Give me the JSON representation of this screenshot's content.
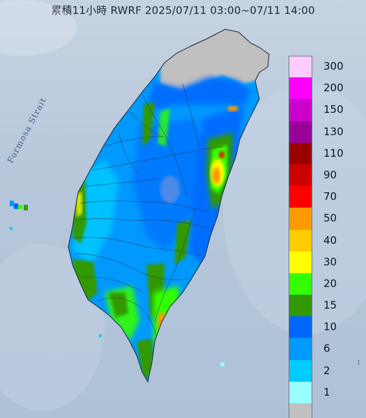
{
  "title": "累積11小時 RWRF 2025/07/11 03:00~07/11 14:00",
  "strait_label": "Formosa Strait",
  "corner_label": "1",
  "legend": [
    {
      "label": "300",
      "color": "#ffccff"
    },
    {
      "label": "200",
      "color": "#ff00ff"
    },
    {
      "label": "150",
      "color": "#cc00cc"
    },
    {
      "label": "130",
      "color": "#990099"
    },
    {
      "label": "110",
      "color": "#990000"
    },
    {
      "label": "90",
      "color": "#cc0000"
    },
    {
      "label": "70",
      "color": "#ff0000"
    },
    {
      "label": "50",
      "color": "#ff9900"
    },
    {
      "label": "40",
      "color": "#ffcc00"
    },
    {
      "label": "30",
      "color": "#ffff00"
    },
    {
      "label": "20",
      "color": "#33ff00"
    },
    {
      "label": "15",
      "color": "#339900"
    },
    {
      "label": "10",
      "color": "#0066ff"
    },
    {
      "label": "6",
      "color": "#0099ff"
    },
    {
      "label": "2",
      "color": "#00ccff"
    },
    {
      "label": "1",
      "color": "#99ffff"
    },
    {
      "label": "",
      "color": "#c0c0c0"
    }
  ],
  "colors": {
    "sea": "#b9c9dc",
    "no_rain": "#c0c0c0",
    "light": "#0099ff",
    "medium": "#0066ff",
    "green": "#339900",
    "bright_green": "#33ff00",
    "yellow": "#ffff00",
    "orange": "#ff9900",
    "red": "#ff0000"
  }
}
